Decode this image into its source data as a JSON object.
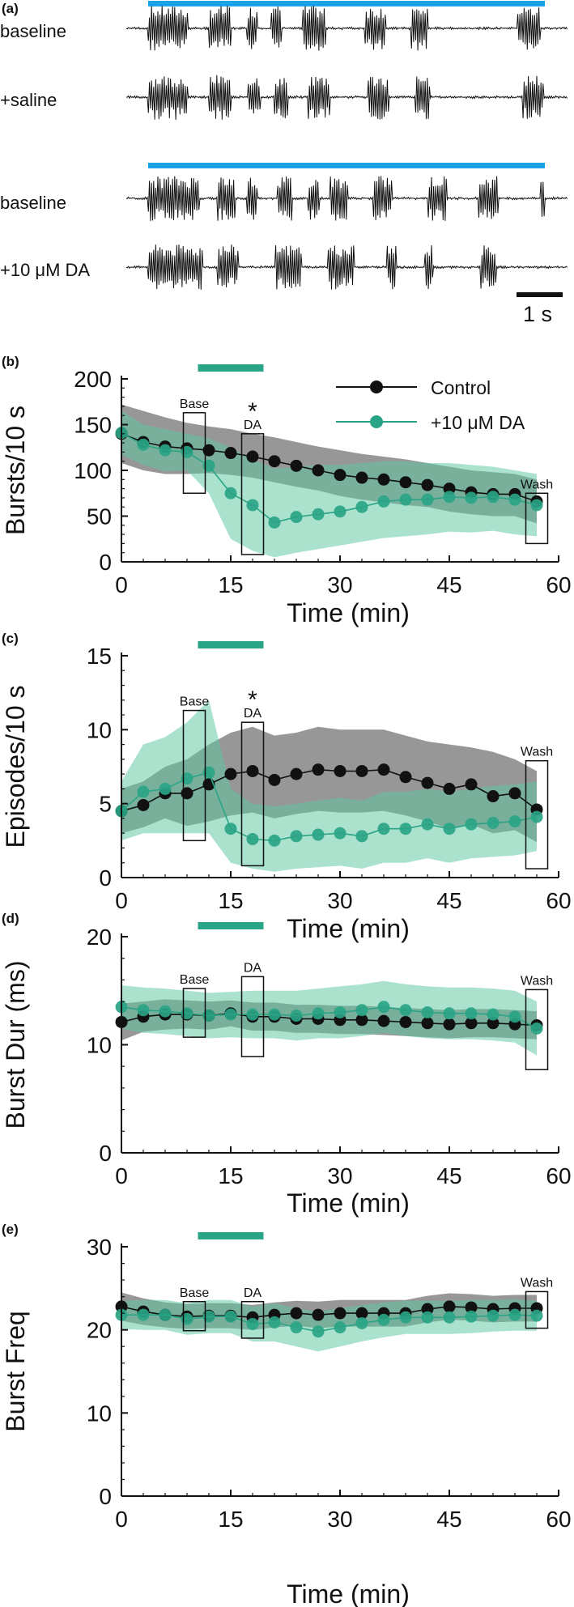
{
  "panel_labels": [
    "(a)",
    "(b)",
    "(c)",
    "(d)",
    "(e)"
  ],
  "traces": {
    "labels": [
      "baseline",
      "+saline",
      "baseline",
      "+10 μM DA"
    ],
    "scale_bar_label": "1 s",
    "colors": {
      "trace": "#111111",
      "light_bar": "#1aa3e8"
    }
  },
  "colors": {
    "control": "#111111",
    "da": "#2aa486",
    "control_band": "#6f6f6f",
    "da_band": "#5cc7a2",
    "treatment_bar": "#2aa486"
  },
  "box_labels": {
    "base": "Base",
    "da": "DA",
    "wash": "Wash"
  },
  "significance_marker": "*",
  "legend": {
    "control": "Control",
    "da": "+10 μM DA"
  },
  "chart_data": [
    {
      "type": "line",
      "ylabel": "Bursts/10 s",
      "xlabel": "Time (min)",
      "xlim": [
        0,
        60
      ],
      "ylim": [
        0,
        200
      ],
      "xticks": [
        "0",
        "15",
        "30",
        "45",
        "60"
      ],
      "yticks": [
        "0",
        "50",
        "100",
        "150",
        "200"
      ],
      "x": [
        0,
        3,
        6,
        9,
        12,
        15,
        18,
        21,
        24,
        27,
        30,
        33,
        36,
        39,
        42,
        45,
        48,
        51,
        54,
        57
      ],
      "series": [
        {
          "name": "Control",
          "values": [
            140,
            131,
            126,
            124,
            122,
            119,
            115,
            110,
            105,
            100,
            95,
            92,
            90,
            87,
            84,
            80,
            76,
            74,
            74,
            66
          ],
          "upper": [
            172,
            165,
            158,
            152,
            148,
            145,
            140,
            136,
            131,
            126,
            122,
            118,
            115,
            112,
            108,
            104,
            100,
            98,
            96,
            90
          ],
          "lower": [
            108,
            100,
            96,
            96,
            97,
            95,
            92,
            87,
            82,
            78,
            72,
            68,
            65,
            62,
            60,
            55,
            52,
            50,
            50,
            42
          ]
        },
        {
          "name": "+10 μM DA",
          "values": [
            141,
            128,
            122,
            120,
            105,
            75,
            62,
            43,
            49,
            52,
            55,
            60,
            66,
            68,
            68,
            71,
            70,
            71,
            68,
            62
          ],
          "upper": [
            165,
            150,
            145,
            140,
            135,
            125,
            112,
            102,
            104,
            106,
            106,
            108,
            110,
            110,
            108,
            108,
            106,
            104,
            100,
            96
          ],
          "lower": [
            117,
            106,
            99,
            100,
            75,
            25,
            12,
            5,
            10,
            14,
            18,
            22,
            26,
            28,
            30,
            33,
            32,
            34,
            30,
            28
          ]
        }
      ],
      "boxes": [
        {
          "label": "Base",
          "x": [
            8.5,
            11.5
          ],
          "y": [
            75,
            163
          ]
        },
        {
          "label": "DA",
          "x": [
            16.5,
            19.5
          ],
          "y": [
            8,
            140
          ]
        },
        {
          "label": "Wash",
          "x": [
            55.5,
            58.5
          ],
          "y": [
            20,
            75
          ]
        }
      ],
      "treatment_bar": [
        10.5,
        19.5
      ],
      "significance_x": 18
    },
    {
      "type": "line",
      "ylabel": "Episodes/10 s",
      "xlabel": "Time (min)",
      "xlim": [
        0,
        60
      ],
      "ylim": [
        0,
        15
      ],
      "xticks": [
        "0",
        "15",
        "30",
        "45",
        "60"
      ],
      "yticks": [
        "0",
        "5",
        "10",
        "15"
      ],
      "x": [
        0,
        3,
        6,
        9,
        12,
        15,
        18,
        21,
        24,
        27,
        30,
        33,
        36,
        39,
        42,
        45,
        48,
        51,
        54,
        57
      ],
      "series": [
        {
          "name": "Control",
          "values": [
            4.5,
            4.9,
            5.7,
            5.7,
            6.3,
            7.0,
            7.2,
            6.6,
            7.0,
            7.3,
            7.2,
            7.2,
            7.3,
            6.8,
            6.4,
            6.0,
            6.3,
            5.5,
            5.7,
            4.6
          ],
          "upper": [
            6.0,
            6.5,
            7.5,
            8.0,
            9.0,
            9.8,
            10.2,
            9.6,
            9.8,
            10.2,
            10.0,
            10.0,
            10.0,
            9.6,
            9.2,
            9.0,
            8.8,
            8.5,
            8.0,
            7.2
          ],
          "lower": [
            3.0,
            3.4,
            4.0,
            3.5,
            3.8,
            4.2,
            4.4,
            4.0,
            4.3,
            4.5,
            4.4,
            4.4,
            4.5,
            4.2,
            3.8,
            3.3,
            3.6,
            3.0,
            3.2,
            2.4
          ]
        },
        {
          "name": "+10 μM DA",
          "values": [
            4.5,
            5.8,
            6.0,
            6.7,
            7.1,
            3.3,
            2.6,
            2.5,
            2.8,
            2.9,
            3.0,
            2.8,
            3.3,
            3.3,
            3.6,
            3.3,
            3.6,
            3.7,
            3.8,
            4.1
          ],
          "upper": [
            6.5,
            9.0,
            9.5,
            10.5,
            12.0,
            6.0,
            5.0,
            4.8,
            5.0,
            5.2,
            5.4,
            5.2,
            5.8,
            5.8,
            6.0,
            5.8,
            6.0,
            6.2,
            6.3,
            6.5
          ],
          "lower": [
            2.5,
            3.0,
            3.0,
            3.0,
            3.0,
            1.0,
            0.6,
            0.4,
            0.6,
            0.7,
            0.8,
            0.6,
            1.0,
            1.0,
            1.3,
            1.0,
            1.3,
            1.4,
            1.5,
            1.8
          ]
        }
      ],
      "boxes": [
        {
          "label": "Base",
          "x": [
            8.5,
            11.5
          ],
          "y": [
            2.5,
            11.3
          ]
        },
        {
          "label": "DA",
          "x": [
            16.5,
            19.5
          ],
          "y": [
            0.8,
            10.5
          ]
        },
        {
          "label": "Wash",
          "x": [
            55.5,
            58.5
          ],
          "y": [
            0.6,
            7.9
          ]
        }
      ],
      "treatment_bar": [
        10.5,
        19.5
      ],
      "significance_x": 18
    },
    {
      "type": "line",
      "ylabel": "Burst Dur (ms)",
      "xlabel": "Time (min)",
      "xlim": [
        0,
        60
      ],
      "ylim": [
        0,
        20
      ],
      "xticks": [
        "0",
        "15",
        "30",
        "45",
        "60"
      ],
      "yticks": [
        "0",
        "10",
        "20"
      ],
      "x": [
        0,
        3,
        6,
        9,
        12,
        15,
        18,
        21,
        24,
        27,
        30,
        33,
        36,
        39,
        42,
        45,
        48,
        51,
        54,
        57
      ],
      "series": [
        {
          "name": "Control",
          "values": [
            12.1,
            12.6,
            12.8,
            12.8,
            12.7,
            12.9,
            12.6,
            12.6,
            12.4,
            12.4,
            12.3,
            12.3,
            12.2,
            12.1,
            12.0,
            11.9,
            12.0,
            12.0,
            11.9,
            11.8
          ],
          "upper": [
            13.8,
            14.0,
            14.2,
            14.1,
            14.0,
            14.1,
            13.9,
            13.9,
            13.7,
            13.7,
            13.6,
            13.6,
            13.5,
            13.4,
            13.3,
            13.2,
            13.3,
            13.3,
            13.2,
            13.1
          ],
          "lower": [
            10.4,
            11.2,
            11.4,
            11.5,
            11.4,
            11.7,
            11.3,
            11.3,
            11.1,
            11.1,
            11.0,
            11.0,
            10.9,
            10.8,
            10.7,
            10.6,
            10.7,
            10.7,
            10.6,
            10.5
          ]
        },
        {
          "name": "+10 μM DA",
          "values": [
            13.5,
            13.2,
            13.1,
            12.9,
            12.7,
            12.8,
            12.8,
            12.8,
            12.7,
            12.9,
            13.0,
            13.2,
            13.5,
            13.2,
            13.0,
            12.9,
            12.9,
            12.8,
            12.6,
            11.5
          ],
          "upper": [
            15.5,
            15.3,
            15.2,
            15.0,
            14.8,
            14.9,
            15.0,
            15.0,
            15.0,
            15.2,
            15.4,
            15.6,
            15.9,
            15.6,
            15.4,
            15.3,
            15.3,
            15.2,
            15.0,
            14.0
          ],
          "lower": [
            11.5,
            11.1,
            11.0,
            10.8,
            10.6,
            10.7,
            10.6,
            10.6,
            10.4,
            10.6,
            10.6,
            10.8,
            11.1,
            10.8,
            10.6,
            10.5,
            10.5,
            10.4,
            10.2,
            9.0
          ]
        }
      ],
      "boxes": [
        {
          "label": "Base",
          "x": [
            8.5,
            11.5
          ],
          "y": [
            10.7,
            15.2
          ]
        },
        {
          "label": "DA",
          "x": [
            16.5,
            19.5
          ],
          "y": [
            8.9,
            16.3
          ]
        },
        {
          "label": "Wash",
          "x": [
            55.5,
            58.5
          ],
          "y": [
            7.7,
            15.1
          ]
        }
      ],
      "treatment_bar": [
        10.5,
        19.5
      ]
    },
    {
      "type": "line",
      "ylabel": "Burst Freq",
      "xlabel": "Time (min)",
      "xlim": [
        0,
        60
      ],
      "ylim": [
        0,
        30
      ],
      "xticks": [
        "0",
        "15",
        "30",
        "45",
        "60"
      ],
      "yticks": [
        "0",
        "10",
        "20",
        "30"
      ],
      "x": [
        0,
        3,
        6,
        9,
        12,
        15,
        18,
        21,
        24,
        27,
        30,
        33,
        36,
        39,
        42,
        45,
        48,
        51,
        54,
        57
      ],
      "series": [
        {
          "name": "Control",
          "values": [
            22.8,
            22.2,
            21.8,
            21.6,
            21.7,
            21.7,
            21.5,
            21.8,
            22.0,
            21.8,
            22.0,
            22.0,
            22.0,
            22.0,
            22.5,
            22.8,
            22.7,
            22.5,
            22.6,
            22.6
          ],
          "upper": [
            24.5,
            23.8,
            23.3,
            23.1,
            23.2,
            23.2,
            23.0,
            23.3,
            23.5,
            23.4,
            23.6,
            23.6,
            23.6,
            23.6,
            24.1,
            24.4,
            24.3,
            24.1,
            24.2,
            24.2
          ],
          "lower": [
            21.1,
            20.6,
            20.3,
            20.1,
            20.2,
            20.2,
            20.0,
            20.3,
            20.5,
            20.2,
            20.4,
            20.4,
            20.4,
            20.4,
            20.9,
            21.2,
            21.1,
            20.9,
            21.0,
            21.0
          ]
        },
        {
          "name": "+10 μM DA",
          "values": [
            21.8,
            21.8,
            21.8,
            21.3,
            21.6,
            21.6,
            20.7,
            20.9,
            20.3,
            19.8,
            20.3,
            20.8,
            21.2,
            21.5,
            21.5,
            21.5,
            21.6,
            21.7,
            21.8,
            21.7
          ],
          "upper": [
            23.5,
            23.6,
            23.6,
            23.2,
            23.6,
            23.6,
            22.8,
            23.2,
            22.6,
            22.2,
            22.6,
            23.0,
            23.3,
            23.5,
            23.5,
            23.5,
            23.6,
            23.6,
            23.7,
            23.5
          ],
          "lower": [
            20.1,
            20.0,
            20.0,
            19.4,
            19.6,
            19.6,
            18.6,
            18.6,
            18.0,
            17.4,
            18.0,
            18.6,
            19.1,
            19.5,
            19.5,
            19.5,
            19.6,
            19.8,
            19.9,
            19.9
          ]
        }
      ],
      "boxes": [
        {
          "label": "Base",
          "x": [
            8.5,
            11.5
          ],
          "y": [
            19.9,
            23.4
          ]
        },
        {
          "label": "DA",
          "x": [
            16.5,
            19.5
          ],
          "y": [
            19.0,
            23.4
          ]
        },
        {
          "label": "Wash",
          "x": [
            55.5,
            58.5
          ],
          "y": [
            20.2,
            24.6
          ]
        }
      ],
      "treatment_bar": [
        10.5,
        19.5
      ]
    }
  ]
}
